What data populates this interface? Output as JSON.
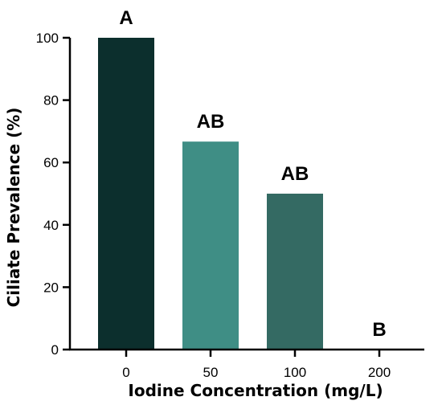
{
  "chart_data": {
    "type": "bar",
    "categories": [
      "0",
      "50",
      "100",
      "200"
    ],
    "values": [
      100,
      66.7,
      50,
      0
    ],
    "significance_labels": [
      "A",
      "AB",
      "AB",
      "B"
    ],
    "colors": [
      "#0c2f2d",
      "#3f8e85",
      "#346a63",
      "#346a63"
    ],
    "xlabel": "Iodine Concentration (mg/L)",
    "ylabel": "Ciliate Prevalence (%)",
    "ylim": [
      0,
      100
    ],
    "yticks": [
      0,
      20,
      40,
      60,
      80,
      100
    ],
    "grid": false
  }
}
